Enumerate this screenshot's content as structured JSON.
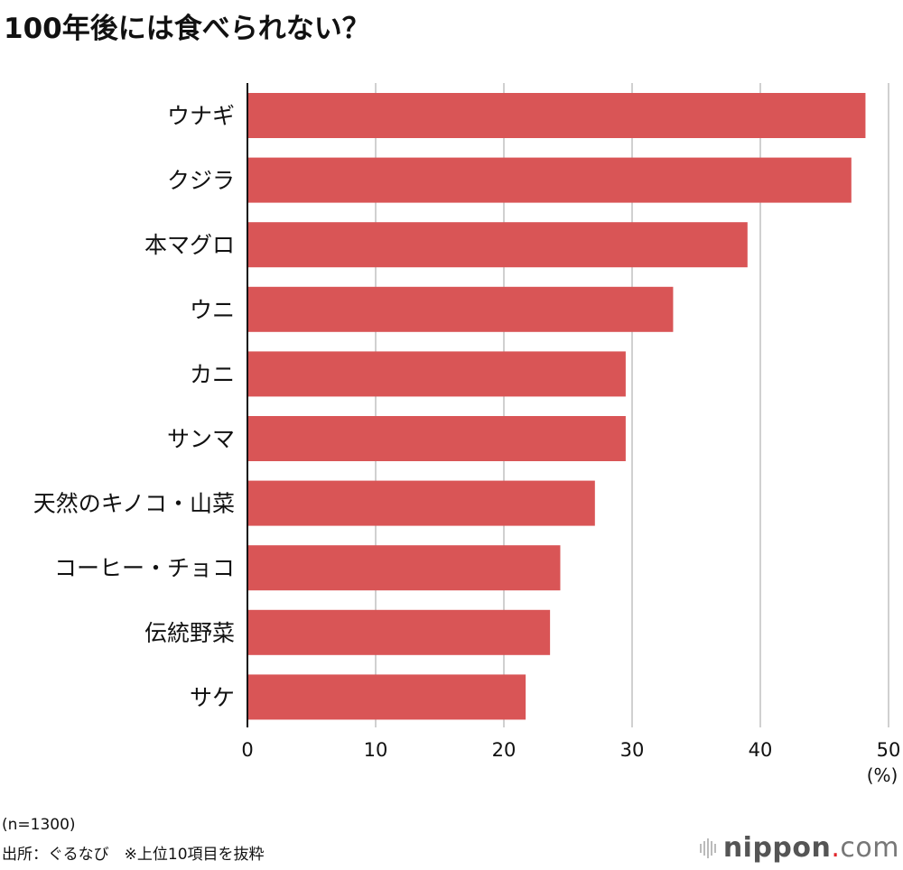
{
  "chart_data": {
    "type": "bar",
    "orientation": "horizontal",
    "title": "100年後には食べられない？",
    "categories": [
      "ウナギ",
      "クジラ",
      "本マグロ",
      "ウニ",
      "カニ",
      "サンマ",
      "天然のキノコ・山菜",
      "コーヒー・チョコ",
      "伝統野菜",
      "サケ"
    ],
    "values": [
      48.2,
      47.1,
      39.0,
      33.2,
      29.5,
      29.5,
      27.1,
      24.4,
      23.6,
      21.7
    ],
    "xlim": [
      0,
      50
    ],
    "xticks": [
      0,
      10,
      20,
      30,
      40,
      50
    ],
    "xunit": "(%)",
    "grid": true,
    "bar_color": "#d95556",
    "grid_color": "#d0d0d0"
  },
  "footer": {
    "sample": "(n=1300)",
    "source": "出所：ぐるなび　※上位10項目を抜粋"
  },
  "logo": {
    "name": "nippon",
    "dot": ".",
    "tld": "com"
  }
}
